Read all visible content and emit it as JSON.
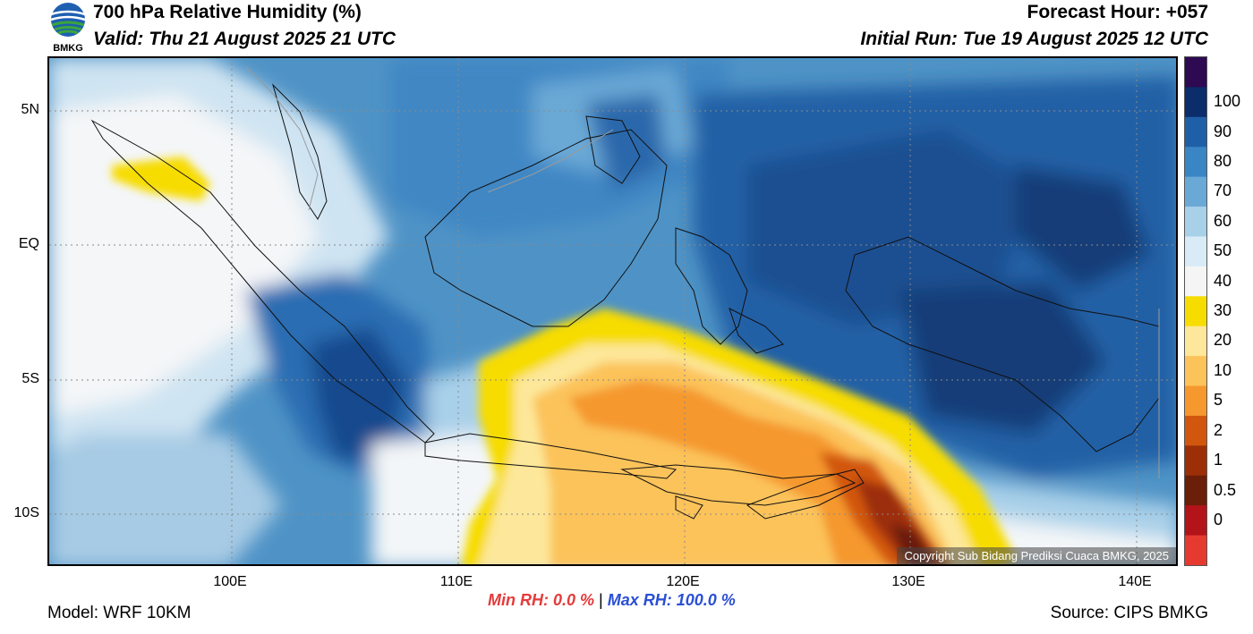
{
  "header": {
    "title": "700 hPa Relative Humidity (%)",
    "valid": "Valid: Thu 21 August 2025 21 UTC",
    "forecast_hour": "Forecast Hour: +057",
    "initial_run": "Initial Run: Tue 19 August 2025 12 UTC"
  },
  "logo": {
    "text": "BMKG",
    "icon": "bmkg-logo-icon"
  },
  "map": {
    "lat_labels": [
      "5N",
      "EQ",
      "5S",
      "10S"
    ],
    "lon_labels": [
      "100E",
      "110E",
      "120E",
      "130E",
      "140E"
    ],
    "copyright": "Copyright Sub Bidang Prediksi Cuaca BMKG, 2025"
  },
  "colorbar": {
    "labels": [
      "100",
      "90",
      "80",
      "70",
      "60",
      "50",
      "40",
      "30",
      "20",
      "10",
      "5",
      "2",
      "1",
      "0.5",
      "0"
    ],
    "colors": [
      "#2d0a52",
      "#0b2d6b",
      "#1f5fa8",
      "#3a85c4",
      "#6aa9d6",
      "#a9d0e9",
      "#d9ebf6",
      "#f5f5f5",
      "#f7dc00",
      "#fde79a",
      "#fcc35a",
      "#f5982e",
      "#d2570e",
      "#9c2f07",
      "#6b1e08",
      "#b3141a",
      "#e63a31"
    ]
  },
  "footer": {
    "model": "Model: WRF 10KM",
    "min_rh": "Min RH:   0.0 %",
    "separator": "|",
    "max_rh": "Max RH: 100.0 %",
    "source": "Source: CIPS BMKG"
  }
}
